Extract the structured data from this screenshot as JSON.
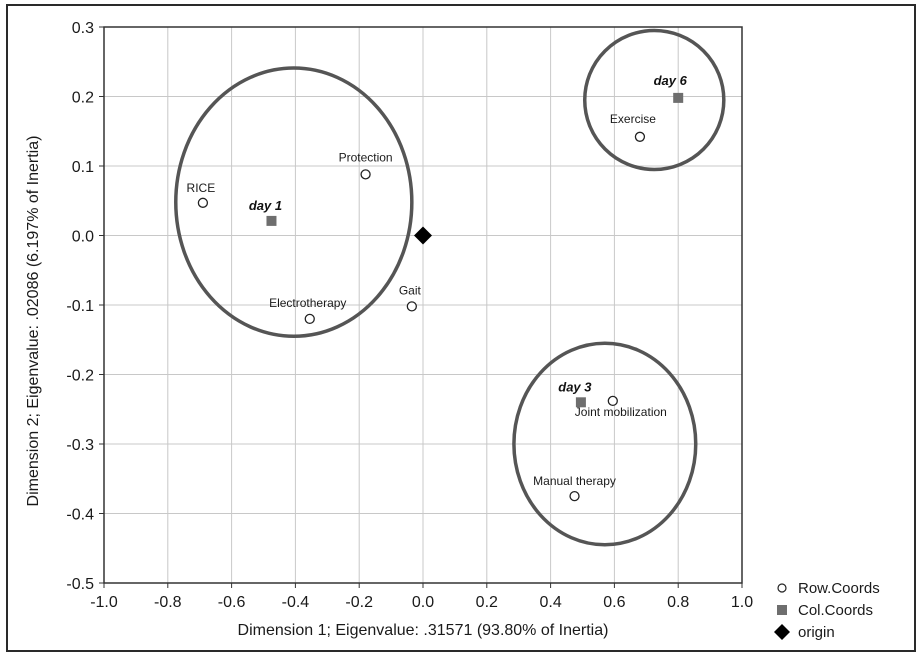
{
  "chart_data": {
    "type": "scatter",
    "xlabel": "Dimension 1; Eigenvalue: .31571 (93.80% of Inertia)",
    "ylabel": "Dimension 2; Eigenvalue: .02086 (6.197% of Inertia)",
    "xlim": [
      -1.0,
      1.0
    ],
    "ylim": [
      -0.5,
      0.3
    ],
    "x_ticks": [
      "-1.0",
      "-0.8",
      "-0.6",
      "-0.4",
      "-0.2",
      "0.0",
      "0.2",
      "0.4",
      "0.6",
      "0.8",
      "1.0"
    ],
    "y_ticks": [
      "-0.5",
      "-0.4",
      "-0.3",
      "-0.2",
      "-0.1",
      "0.0",
      "0.1",
      "0.2",
      "0.3"
    ],
    "grid": true,
    "legend_position": "bottom-right",
    "series": [
      {
        "name": "Row.Coords",
        "marker": "open-circle",
        "points": [
          {
            "label": "RICE",
            "x": -0.69,
            "y": 0.047
          },
          {
            "label": "Protection",
            "x": -0.18,
            "y": 0.088
          },
          {
            "label": "Electrotherapy",
            "x": -0.355,
            "y": -0.12
          },
          {
            "label": "Gait",
            "x": -0.035,
            "y": -0.102
          },
          {
            "label": "Exercise",
            "x": 0.68,
            "y": 0.142
          },
          {
            "label": "Joint mobilization",
            "x": 0.595,
            "y": -0.238
          },
          {
            "label": "Manual therapy",
            "x": 0.475,
            "y": -0.375
          }
        ]
      },
      {
        "name": "Col.Coords",
        "marker": "filled-square",
        "color": "#6e6e6e",
        "points": [
          {
            "label": "day 1",
            "x": -0.475,
            "y": 0.021
          },
          {
            "label": "day 3",
            "x": 0.495,
            "y": -0.24
          },
          {
            "label": "day 6",
            "x": 0.8,
            "y": 0.198
          }
        ]
      },
      {
        "name": "origin",
        "marker": "filled-diamond",
        "color": "#000000",
        "points": [
          {
            "label": "",
            "x": 0.0,
            "y": 0.0
          }
        ]
      }
    ],
    "group_ellipses": [
      {
        "group": "day 1",
        "cx": -0.405,
        "cy": 0.048,
        "rx": 0.37,
        "ry": 0.193
      },
      {
        "group": "day 3",
        "cx": 0.57,
        "cy": -0.3,
        "rx": 0.285,
        "ry": 0.145
      },
      {
        "group": "day 6",
        "cx": 0.725,
        "cy": 0.195,
        "rx": 0.218,
        "ry": 0.1
      }
    ],
    "colors": {
      "ellipse": "#555555",
      "grid": "#c8c8c8",
      "frame": "#2a2a2a"
    }
  }
}
